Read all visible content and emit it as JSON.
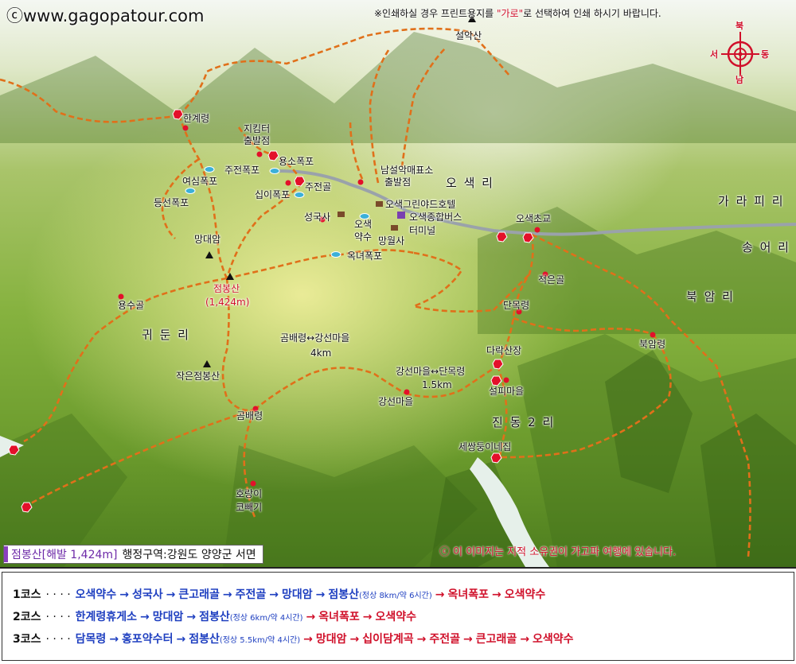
{
  "site": "ⓒwww.gagopatour.com",
  "print_note": {
    "prefix": "※인쇄하실 경우 프린트용지를 ",
    "quoted": "\"가로\"",
    "suffix": "로 선택하여 인쇄 하시기 바랍니다."
  },
  "compass": {
    "north": "북",
    "south": "남",
    "east": "동",
    "west": "서"
  },
  "colors": {
    "trail": "#e0701a",
    "road": "#9aa2aa",
    "marker": "#e3102a",
    "river": "#e6f0ea",
    "course_blue": "#1e3fc0",
    "course_red": "#d0102a",
    "infobox_bar": "#8b3fc0"
  },
  "labels": {
    "seoraksan": "설악산",
    "hangyeryeong": "한계령",
    "jigimteo": "지킴터",
    "chulbaljeom1": "출발점",
    "yongso": "용소폭포",
    "jujeonpokpo": "주전폭포",
    "jujeongol": "주전골",
    "yeosimpokpo": "여심폭포",
    "sipipokpo": "십이폭포",
    "deungseonpokpo": "등선폭포",
    "seongguksa": "성국사",
    "osaek": "오색",
    "yaksu": "약수",
    "mangwolsa": "망월사",
    "namseorak": "남설악매표소",
    "chulbaljeom2": "출발점",
    "osaekri": "오 색 리",
    "hotel": "오색그린야드호텔",
    "terminal1": "오색종합버스",
    "terminal2": "터미널",
    "osaekcho": "오색초교",
    "garapiri": "가 라 피 리",
    "songeori": "송 어 리",
    "mangdaeam": "망대암",
    "jeombongsan": "점봉산",
    "jeombong_height": "(1,424m)",
    "okneopokpo": "옥녀폭포",
    "jeokeungol": "적은골",
    "bugamri": "북 암 리",
    "yongsugol": "용수골",
    "gwidunri": "귀 둔 리",
    "danmokryeong": "단목령",
    "gombae_gangseon": "곰배령↔강선마을",
    "dist_4km": "4km",
    "darak": "다락산장",
    "bugamryeong": "북암령",
    "gangseon_danmok": "강선마을↔단목령",
    "dist_15km": "1.5km",
    "seolpi": "설피마을",
    "jageunjeombong": "작은점봉산",
    "gangseonmaeul": "강선마을",
    "gombaeryeong": "곰배령",
    "jindong2ri": "진 동 2 리",
    "sessangdung": "세쌍둥이네집",
    "horangi": "호랑이",
    "kobbaegi": "코빼기"
  },
  "info": {
    "name": "점봉산[해발 1,424m]",
    "admin": "행정구역:강원도 양양군 서면"
  },
  "copyright": "ⓒ 이 이미지는 지적 소유권이 가고파 여행에 있습니다.",
  "courses": [
    {
      "num": "1코스",
      "dots": "· · · ·",
      "steps": [
        {
          "t": "오색약수",
          "c": "blue"
        },
        {
          "t": "성국사",
          "c": "blue"
        },
        {
          "t": "큰고래골",
          "c": "blue"
        },
        {
          "t": "주전골",
          "c": "blue"
        },
        {
          "t": "망대암",
          "c": "blue"
        },
        {
          "t": "점봉산",
          "c": "blue",
          "note": "(정상 8km/약 6시간)"
        },
        {
          "t": "옥녀폭포",
          "c": "red"
        },
        {
          "t": "오색약수",
          "c": "red"
        }
      ]
    },
    {
      "num": "2코스",
      "dots": "· · · ·",
      "steps": [
        {
          "t": "한계령휴게소",
          "c": "blue"
        },
        {
          "t": "망대암",
          "c": "blue"
        },
        {
          "t": "점봉산",
          "c": "blue",
          "note": "(정상 6km/약 4시간)"
        },
        {
          "t": "옥녀폭포",
          "c": "red"
        },
        {
          "t": "오색약수",
          "c": "red"
        }
      ]
    },
    {
      "num": "3코스",
      "dots": "· · · ·",
      "steps": [
        {
          "t": "담목령",
          "c": "blue"
        },
        {
          "t": "홍포약수터",
          "c": "blue"
        },
        {
          "t": "점봉산",
          "c": "blue",
          "note": "(정상 5.5km/약 4시간)"
        },
        {
          "t": "망대암",
          "c": "red"
        },
        {
          "t": "십이담계곡",
          "c": "red"
        },
        {
          "t": "주전골",
          "c": "red"
        },
        {
          "t": "큰고래골",
          "c": "red"
        },
        {
          "t": "오색약수",
          "c": "red"
        }
      ]
    }
  ]
}
